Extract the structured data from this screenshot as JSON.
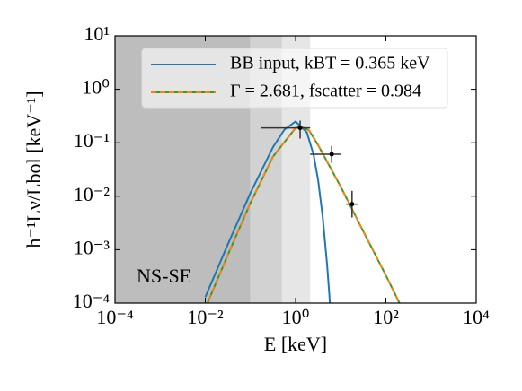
{
  "chart_data": {
    "type": "line",
    "xlabel": "E [keV]",
    "ylabel": "h⁻¹Lν/Lbol [keV⁻¹]",
    "annotation": "NS-SE",
    "log_x": true,
    "log_y": true,
    "xlim": [
      0.0001,
      10000
    ],
    "ylim": [
      0.0001,
      10
    ],
    "xticks": [
      {
        "value": 0.0001,
        "label": "10⁻⁴"
      },
      {
        "value": 0.01,
        "label": "10⁻²"
      },
      {
        "value": 1,
        "label": "10⁰"
      },
      {
        "value": 100,
        "label": "10²"
      },
      {
        "value": 10000,
        "label": "10⁴"
      }
    ],
    "yticks": [
      {
        "value": 0.0001,
        "label": "10⁻⁴"
      },
      {
        "value": 0.001,
        "label": "10⁻³"
      },
      {
        "value": 0.01,
        "label": "10⁻²"
      },
      {
        "value": 0.1,
        "label": "10⁻¹"
      },
      {
        "value": 1,
        "label": "10⁰"
      },
      {
        "value": 10,
        "label": "10¹"
      }
    ],
    "bands": [
      {
        "from": 0.0001,
        "to": 0.1,
        "color": "#bdbdbd"
      },
      {
        "from": 0.1,
        "to": 0.5,
        "color": "#d2d2d2"
      },
      {
        "from": 0.5,
        "to": 2.1,
        "color": "#e6e6e6"
      }
    ],
    "legend": "upper right",
    "series": [
      {
        "name": "BB input, kBT = 0.365 keV",
        "color": "#1f77b4",
        "x": [
          0.01,
          0.0316,
          0.1,
          0.316,
          0.562,
          1,
          1.78,
          2.5,
          3.16,
          4,
          5,
          5.6,
          6
        ],
        "values": [
          0.00013,
          0.00126,
          0.0115,
          0.0828,
          0.175,
          0.25,
          0.156,
          0.06,
          0.0198,
          0.004,
          0.00051,
          0.00014,
          5.6e-05
        ]
      },
      {
        "name": "Γ = 2.681, fscatter = 0.984",
        "color": "#2ca02c",
        "dash_color": "#ff7f0e",
        "x": [
          0.01,
          0.0316,
          0.1,
          0.316,
          1,
          1.3,
          2,
          3.16,
          10,
          31.6,
          100,
          200,
          316
        ],
        "values": [
          8e-05,
          0.0008,
          0.0075,
          0.055,
          0.19,
          0.2,
          0.17,
          0.09,
          0.015,
          0.0022,
          0.00033,
          0.0001,
          5e-05
        ]
      }
    ],
    "points": {
      "color": "#000000",
      "errcolor": "#333333",
      "x": [
        1.26,
        6.3,
        17.8
      ],
      "values": [
        0.19,
        0.061,
        0.0071
      ],
      "x_low": [
        0.17,
        2.1,
        13
      ],
      "x_high": [
        2.1,
        10.2,
        24
      ],
      "y_low": [
        0.12,
        0.042,
        0.004
      ],
      "y_high": [
        0.26,
        0.087,
        0.0126
      ]
    }
  }
}
